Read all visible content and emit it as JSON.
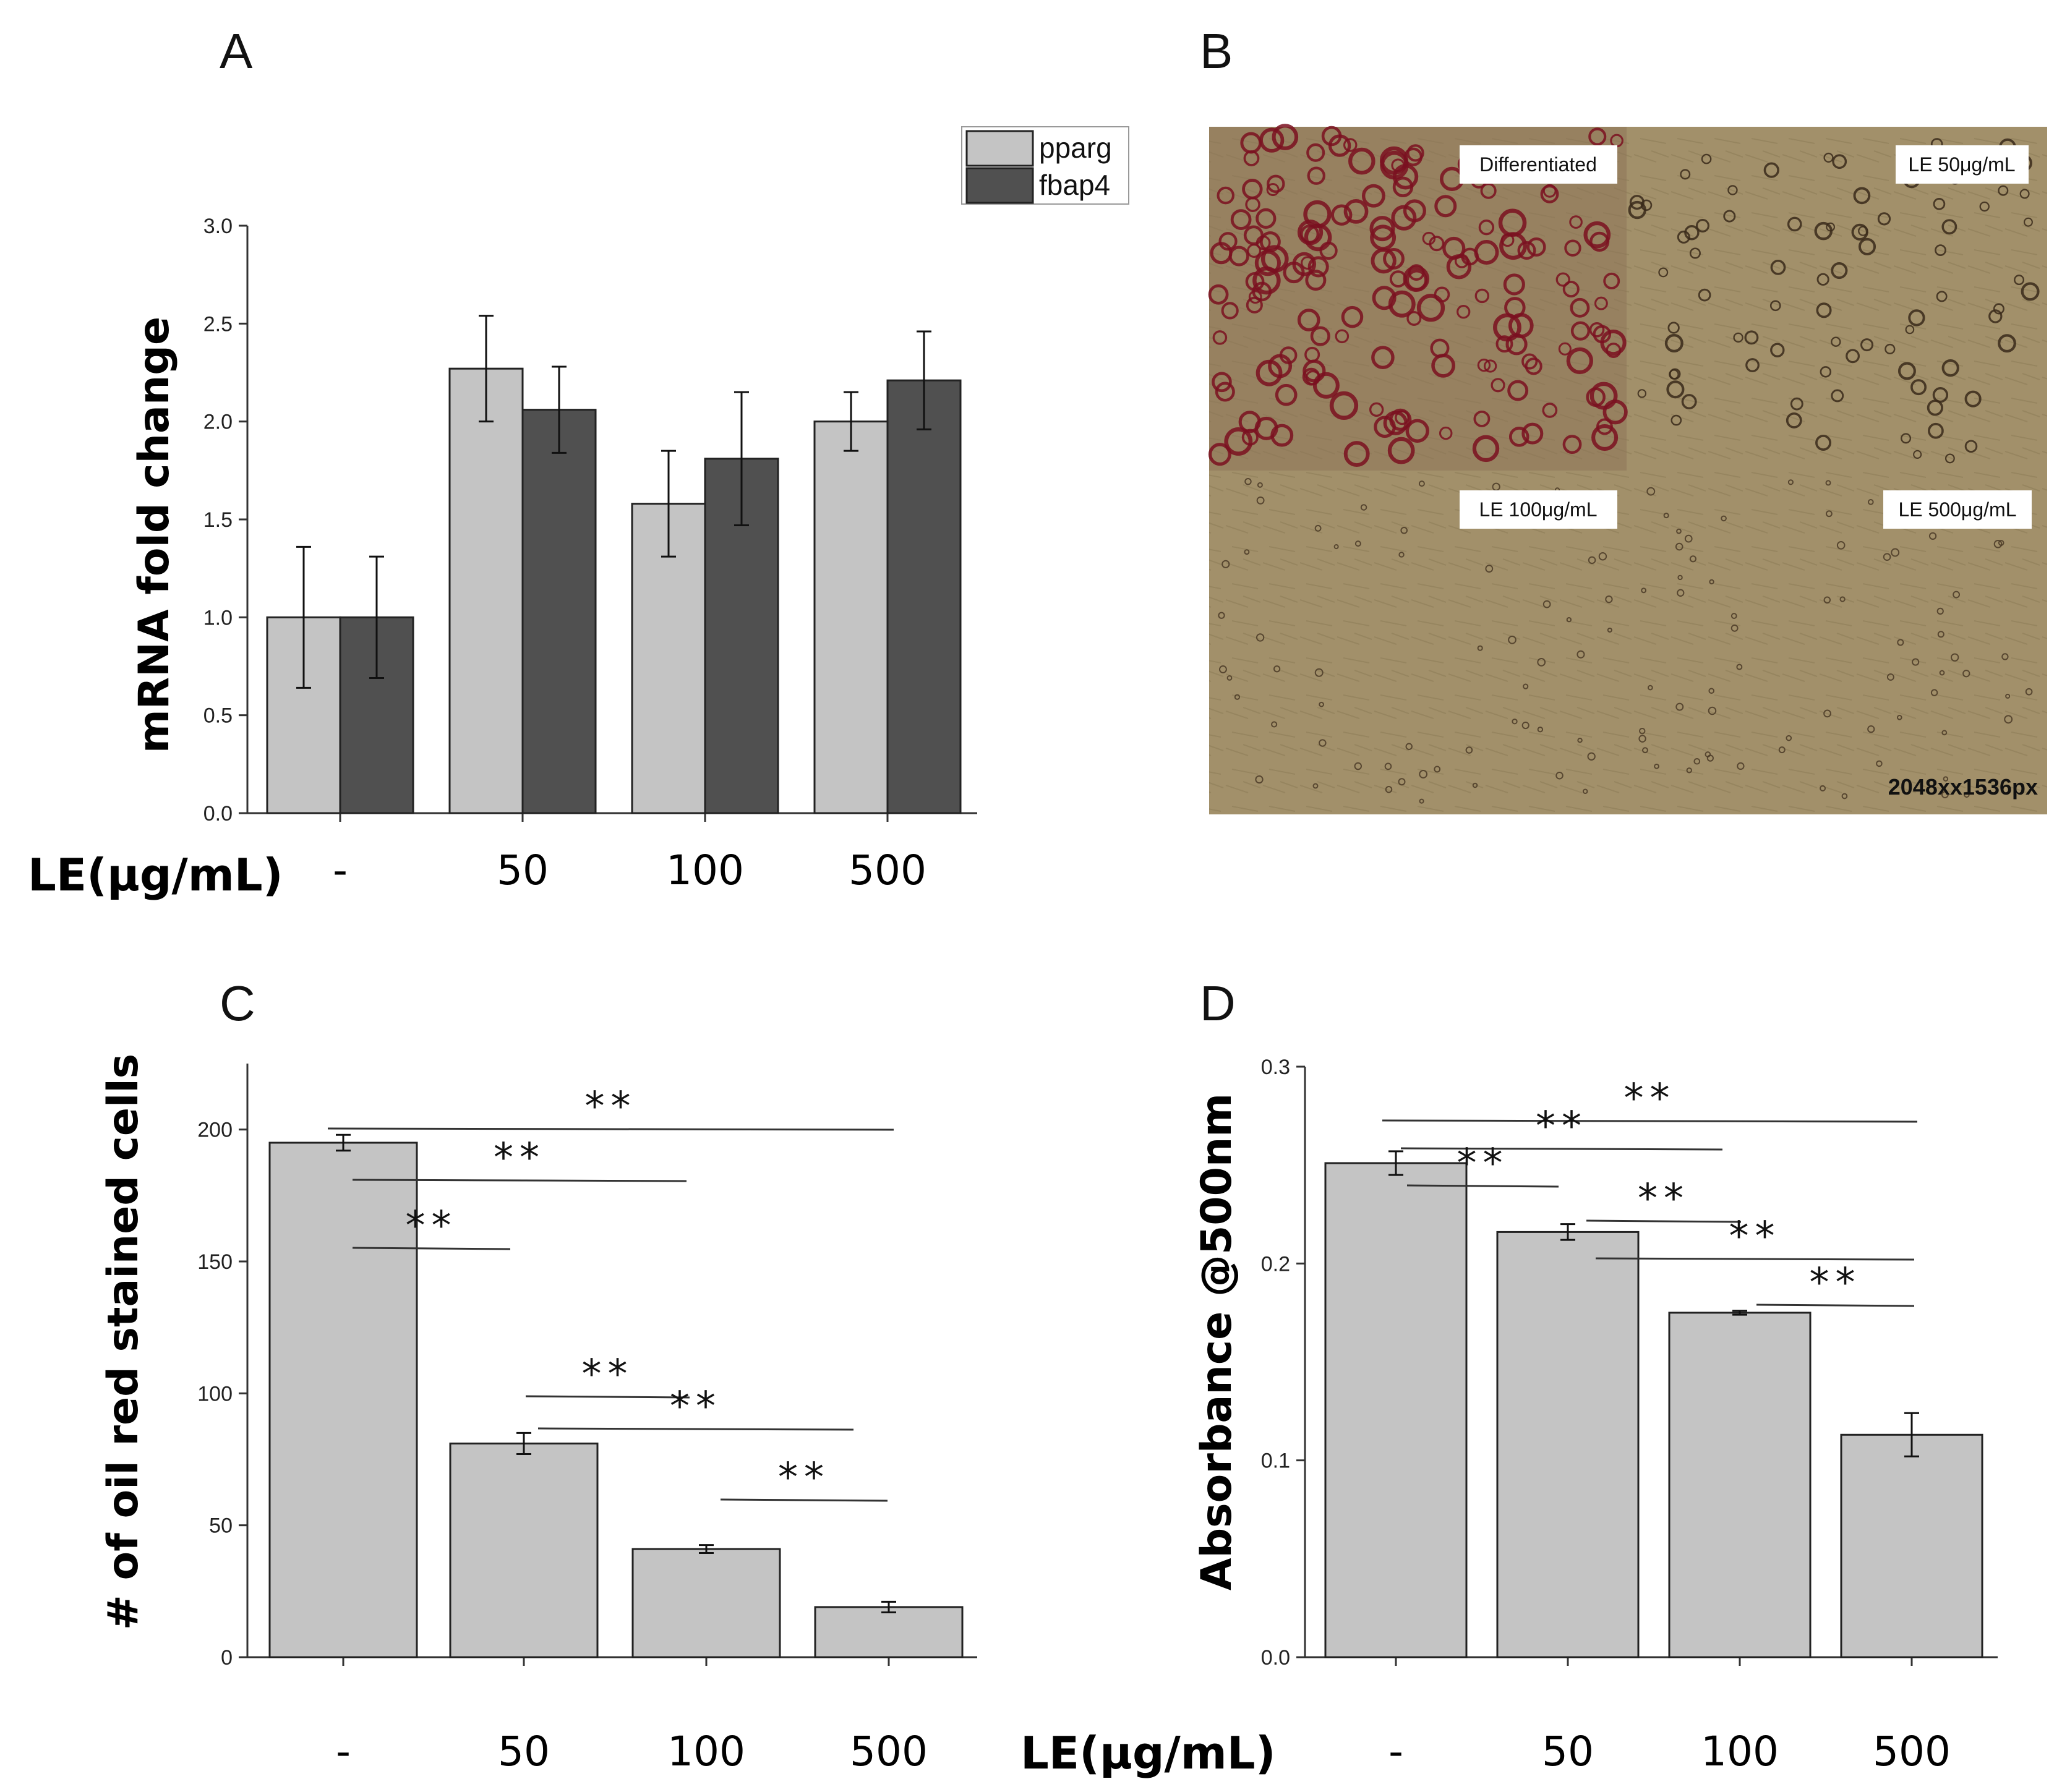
{
  "panel_labels": {
    "A": "A",
    "B": "B",
    "C": "C",
    "D": "D"
  },
  "colors": {
    "light_bar": "#c4c4c4",
    "dark_bar": "#505050",
    "axis": "#333333",
    "micro_bg": "#a89a78"
  },
  "chart_data": [
    {
      "panel": "A",
      "type": "bar",
      "ylabel": "mRNA fold change",
      "xlabel": "LE(μg/mL)",
      "categories": [
        "-",
        "50",
        "100",
        "500"
      ],
      "ylim": [
        0,
        3.0
      ],
      "yticks": [
        "0.0",
        "0.5",
        "1.0",
        "1.5",
        "2.0",
        "2.5",
        "3.0"
      ],
      "legend_position": "top-right",
      "series": [
        {
          "name": "pparg",
          "color": "#c4c4c4",
          "values": [
            1.0,
            2.27,
            1.58,
            2.0
          ],
          "errors": [
            0.36,
            0.27,
            0.27,
            0.15
          ]
        },
        {
          "name": "fbap4",
          "color": "#505050",
          "values": [
            1.0,
            2.06,
            1.81,
            2.21
          ],
          "errors": [
            0.31,
            0.22,
            0.34,
            0.25
          ]
        }
      ]
    },
    {
      "panel": "C",
      "type": "bar",
      "ylabel": "# of oil red stained cells",
      "xlabel": "LE(μg/mL)",
      "categories": [
        "-",
        "50",
        "100",
        "500"
      ],
      "ylim": [
        0,
        225
      ],
      "yticks": [
        "0",
        "50",
        "100",
        "150",
        "200"
      ],
      "series": [
        {
          "name": "cells",
          "color": "#c4c4c4",
          "values": [
            195,
            81,
            41,
            19
          ],
          "errors": [
            3,
            4,
            1.5,
            2
          ]
        }
      ],
      "significance": [
        {
          "from": 0,
          "to": 3,
          "label": "**"
        },
        {
          "from": 0,
          "to": 2,
          "label": "**"
        },
        {
          "from": 0,
          "to": 1,
          "label": "**"
        },
        {
          "from": 1,
          "to": 2,
          "label": "**"
        },
        {
          "from": 1,
          "to": 3,
          "label": "**"
        },
        {
          "from": 2,
          "to": 3,
          "label": "**"
        }
      ]
    },
    {
      "panel": "D",
      "type": "bar",
      "ylabel": "Absorbance @500nm",
      "xlabel": "LE(μg/mL)",
      "categories": [
        "-",
        "50",
        "100",
        "500"
      ],
      "ylim": [
        0,
        0.3
      ],
      "yticks": [
        "0.0",
        "0.1",
        "0.2",
        "0.3"
      ],
      "series": [
        {
          "name": "absorbance",
          "color": "#c4c4c4",
          "values": [
            0.251,
            0.216,
            0.175,
            0.113
          ],
          "errors": [
            0.006,
            0.004,
            0.001,
            0.011
          ]
        }
      ],
      "significance": [
        {
          "from": 0,
          "to": 3,
          "label": "**"
        },
        {
          "from": 0,
          "to": 2,
          "label": "**"
        },
        {
          "from": 0,
          "to": 1,
          "label": "**"
        },
        {
          "from": 1,
          "to": 2,
          "label": "**"
        },
        {
          "from": 1,
          "to": 3,
          "label": "**"
        },
        {
          "from": 2,
          "to": 3,
          "label": "**"
        }
      ]
    }
  ],
  "micrograph": {
    "quadrants": [
      "Differentiated",
      "LE 50μg/mL",
      "LE 100μg/mL",
      "LE 500μg/mL"
    ],
    "size_label": "2048xx1536px"
  },
  "xlabel_shared": "LE(μg/mL)"
}
